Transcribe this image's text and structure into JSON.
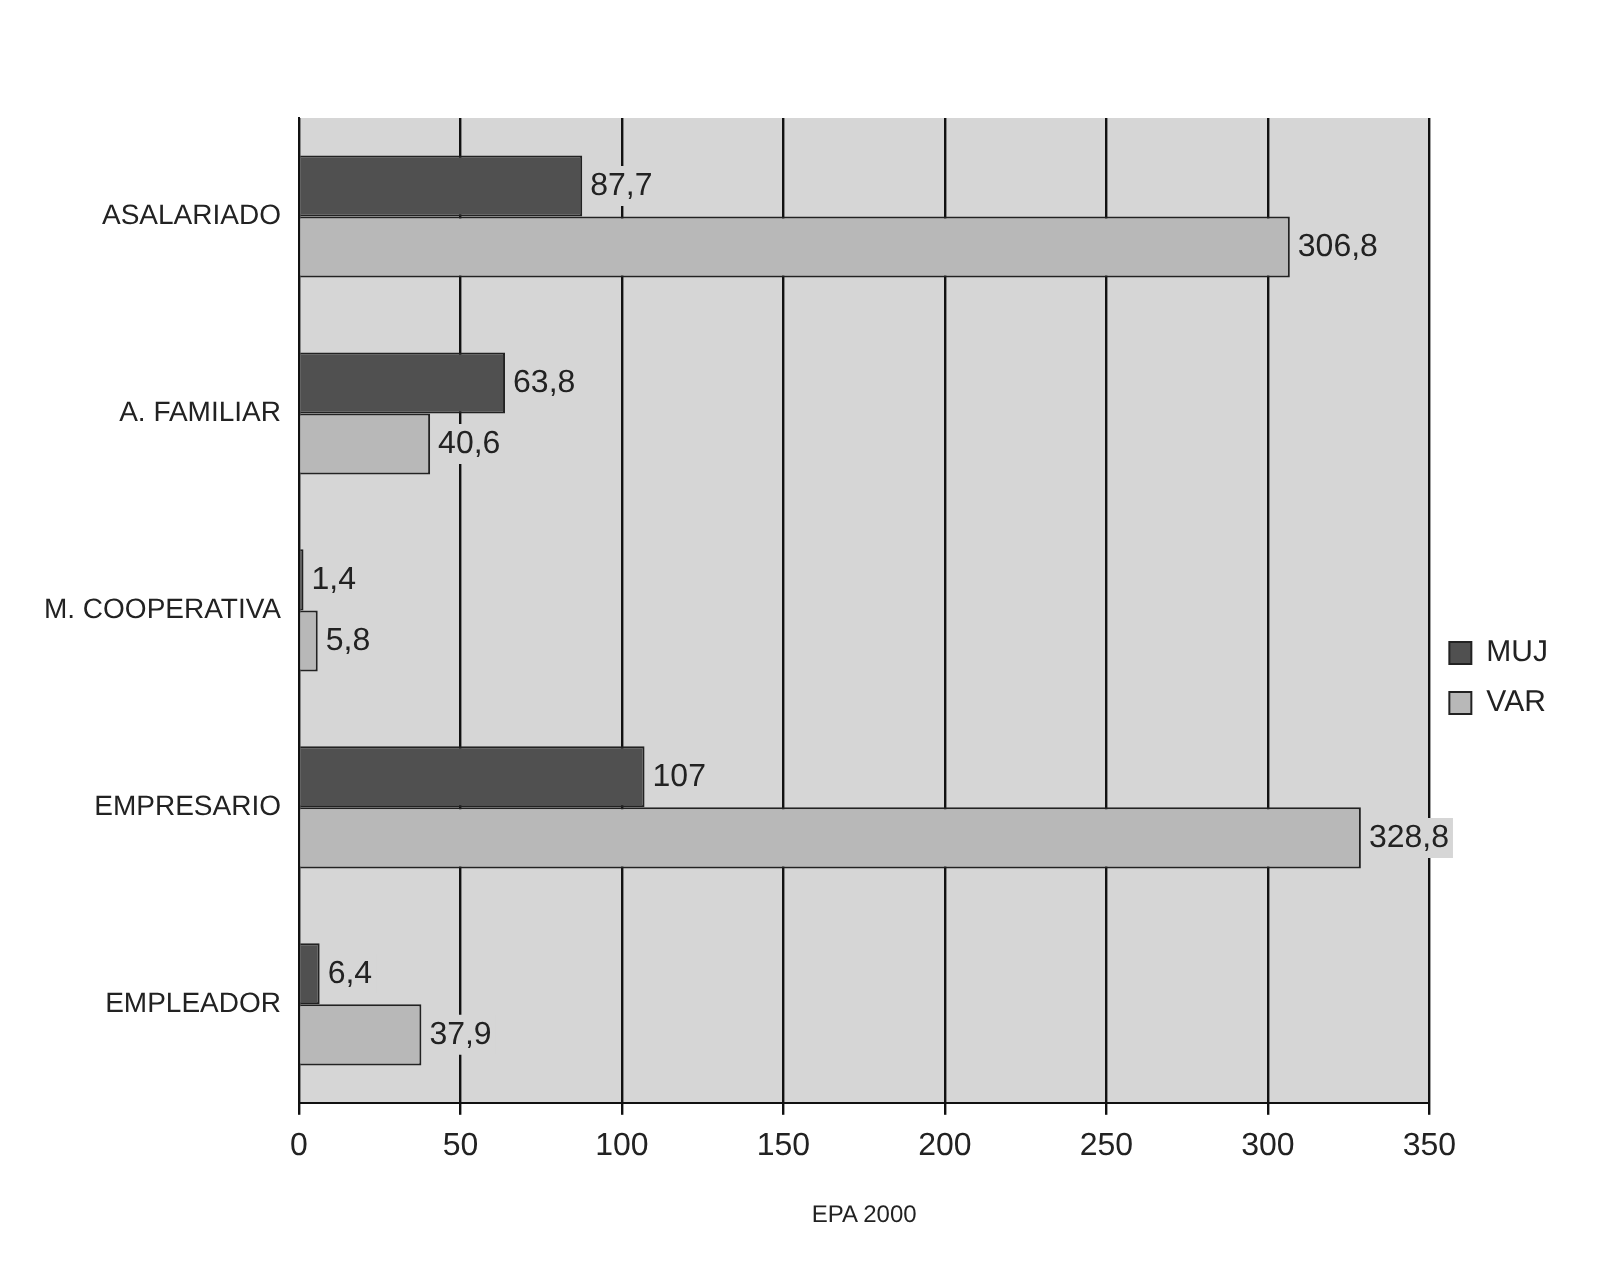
{
  "chart_data": {
    "type": "bar",
    "orientation": "horizontal",
    "xlabel": "EPA 2000",
    "categories": [
      "ASALARIADO",
      "A. FAMILIAR",
      "M. COOPERATIVA",
      "EMPRESARIO",
      "EMPLEADOR"
    ],
    "series": [
      {
        "name": "MUJ",
        "color": "#505050",
        "values": [
          87.7,
          63.8,
          1.4,
          107,
          6.4
        ],
        "value_labels": [
          "87,7",
          "63,8",
          "1,4",
          "107",
          "6,4"
        ]
      },
      {
        "name": "VAR",
        "color": "#b8b8b8",
        "values": [
          306.8,
          40.6,
          5.8,
          328.8,
          37.9
        ],
        "value_labels": [
          "306,8",
          "40,6",
          "5,8",
          "328,8",
          "37,9"
        ]
      }
    ],
    "xlim": [
      0,
      350
    ],
    "xticks": [
      0,
      50,
      100,
      150,
      200,
      250,
      300,
      350
    ],
    "grid": "x",
    "legend": "right"
  }
}
